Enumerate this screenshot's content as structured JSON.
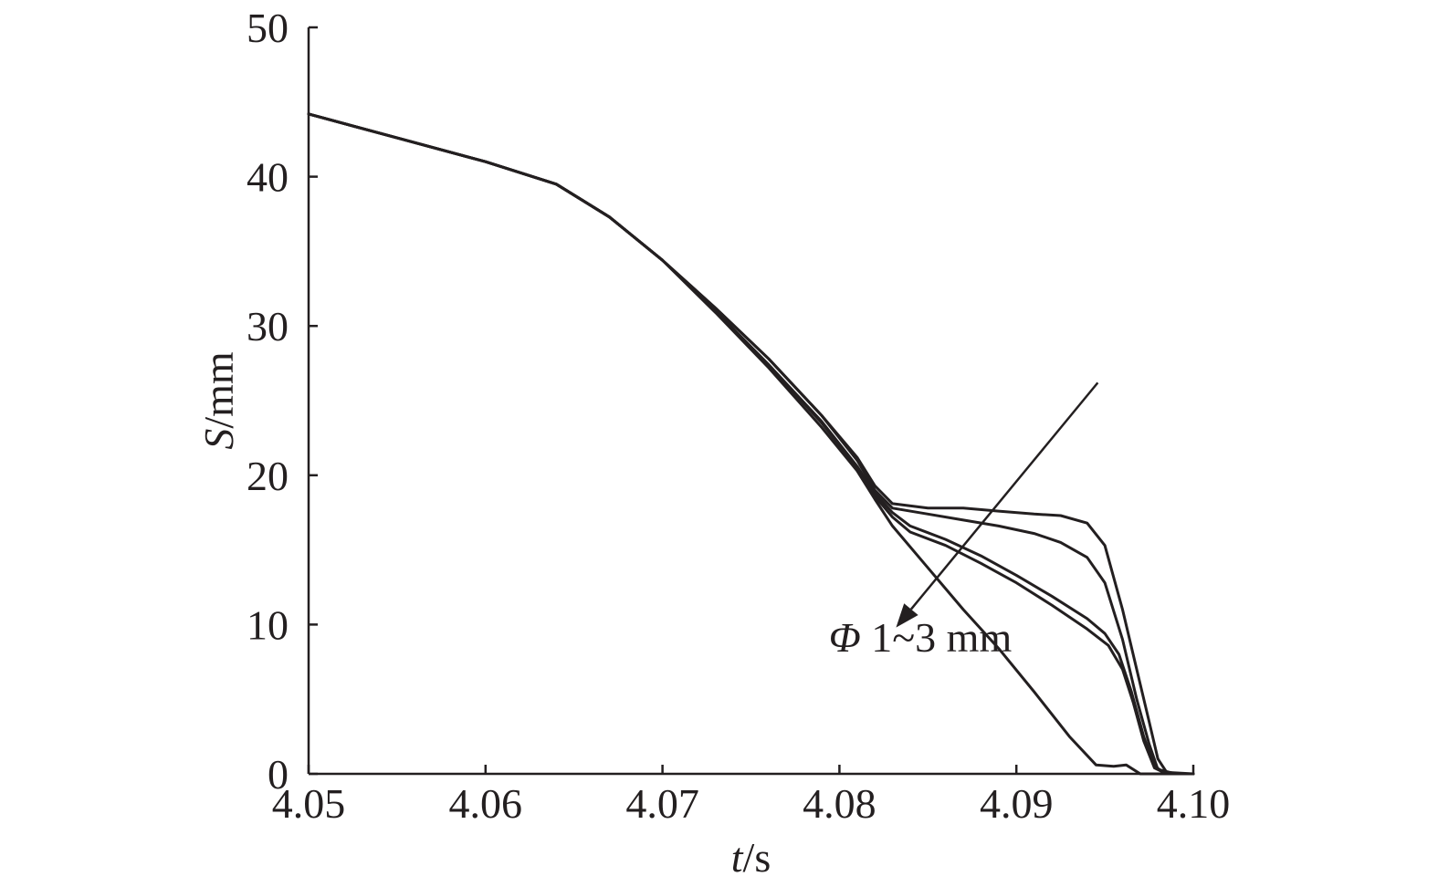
{
  "chart_data": {
    "type": "line",
    "xlabel": {
      "italic": "t",
      "unit": "/s"
    },
    "ylabel": {
      "italic": "S",
      "unit": "/mm"
    },
    "xlim": [
      4.05,
      4.1
    ],
    "ylim": [
      0,
      50
    ],
    "xticks": [
      4.05,
      4.06,
      4.07,
      4.08,
      4.09,
      4.1
    ],
    "xtick_labels": [
      "4.05",
      "4.06",
      "4.07",
      "4.08",
      "4.09",
      "4.10"
    ],
    "yticks": [
      0,
      10,
      20,
      30,
      40,
      50
    ],
    "ytick_labels": [
      "0",
      "10",
      "20",
      "30",
      "40",
      "50"
    ],
    "grid": false,
    "annotation": {
      "italic": "Φ",
      "text": " 1~3 mm",
      "arrow_from": [
        4.0946,
        26.2
      ],
      "arrow_to": [
        4.0832,
        9.8
      ],
      "label_at": [
        4.0794,
        8.2
      ]
    },
    "series": [
      {
        "points": [
          [
            4.05,
            44.2
          ],
          [
            4.055,
            42.6
          ],
          [
            4.06,
            41.0
          ],
          [
            4.064,
            39.5
          ],
          [
            4.067,
            37.3
          ],
          [
            4.07,
            34.4
          ],
          [
            4.073,
            31.2
          ],
          [
            4.076,
            27.8
          ],
          [
            4.079,
            24.0
          ],
          [
            4.081,
            21.2
          ],
          [
            4.082,
            19.3
          ],
          [
            4.083,
            18.1
          ],
          [
            4.085,
            17.8
          ],
          [
            4.087,
            17.8
          ],
          [
            4.089,
            17.6
          ],
          [
            4.091,
            17.4
          ],
          [
            4.0925,
            17.3
          ],
          [
            4.094,
            16.8
          ],
          [
            4.095,
            15.3
          ],
          [
            4.096,
            11.0
          ],
          [
            4.0968,
            7.0
          ],
          [
            4.0975,
            3.5
          ],
          [
            4.098,
            1.0
          ],
          [
            4.0985,
            0.1
          ],
          [
            4.1,
            0.0
          ]
        ]
      },
      {
        "points": [
          [
            4.05,
            44.2
          ],
          [
            4.055,
            42.6
          ],
          [
            4.06,
            41.0
          ],
          [
            4.064,
            39.5
          ],
          [
            4.067,
            37.3
          ],
          [
            4.07,
            34.4
          ],
          [
            4.073,
            31.2
          ],
          [
            4.076,
            27.8
          ],
          [
            4.079,
            24.0
          ],
          [
            4.081,
            21.0
          ],
          [
            4.082,
            19.0
          ],
          [
            4.083,
            17.8
          ],
          [
            4.085,
            17.4
          ],
          [
            4.087,
            17.0
          ],
          [
            4.089,
            16.6
          ],
          [
            4.091,
            16.1
          ],
          [
            4.0925,
            15.5
          ],
          [
            4.094,
            14.5
          ],
          [
            4.095,
            12.8
          ],
          [
            4.096,
            9.0
          ],
          [
            4.0968,
            5.0
          ],
          [
            4.0975,
            2.0
          ],
          [
            4.098,
            0.3
          ],
          [
            4.099,
            0.0
          ],
          [
            4.1,
            0.0
          ]
        ]
      },
      {
        "points": [
          [
            4.05,
            44.2
          ],
          [
            4.055,
            42.6
          ],
          [
            4.06,
            41.0
          ],
          [
            4.064,
            39.5
          ],
          [
            4.067,
            37.3
          ],
          [
            4.07,
            34.4
          ],
          [
            4.073,
            31.0
          ],
          [
            4.076,
            27.4
          ],
          [
            4.079,
            23.6
          ],
          [
            4.081,
            20.6
          ],
          [
            4.082,
            18.8
          ],
          [
            4.083,
            17.5
          ],
          [
            4.084,
            16.6
          ],
          [
            4.086,
            15.7
          ],
          [
            4.088,
            14.6
          ],
          [
            4.09,
            13.3
          ],
          [
            4.092,
            11.9
          ],
          [
            4.094,
            10.4
          ],
          [
            4.095,
            9.4
          ],
          [
            4.0958,
            8.0
          ],
          [
            4.0965,
            5.5
          ],
          [
            4.0972,
            2.5
          ],
          [
            4.0978,
            0.5
          ],
          [
            4.0985,
            0.0
          ],
          [
            4.1,
            0.0
          ]
        ]
      },
      {
        "points": [
          [
            4.05,
            44.2
          ],
          [
            4.055,
            42.6
          ],
          [
            4.06,
            41.0
          ],
          [
            4.064,
            39.5
          ],
          [
            4.067,
            37.3
          ],
          [
            4.07,
            34.4
          ],
          [
            4.073,
            31.0
          ],
          [
            4.076,
            27.4
          ],
          [
            4.079,
            23.5
          ],
          [
            4.081,
            20.5
          ],
          [
            4.082,
            18.6
          ],
          [
            4.083,
            17.2
          ],
          [
            4.084,
            16.2
          ],
          [
            4.086,
            15.3
          ],
          [
            4.088,
            14.1
          ],
          [
            4.09,
            12.8
          ],
          [
            4.092,
            11.3
          ],
          [
            4.094,
            9.7
          ],
          [
            4.0952,
            8.6
          ],
          [
            4.096,
            7.0
          ],
          [
            4.0966,
            4.8
          ],
          [
            4.0972,
            2.2
          ],
          [
            4.0978,
            0.4
          ],
          [
            4.0985,
            0.0
          ],
          [
            4.1,
            0.0
          ]
        ]
      },
      {
        "points": [
          [
            4.05,
            44.2
          ],
          [
            4.055,
            42.6
          ],
          [
            4.06,
            41.0
          ],
          [
            4.064,
            39.5
          ],
          [
            4.067,
            37.3
          ],
          [
            4.07,
            34.4
          ],
          [
            4.073,
            30.9
          ],
          [
            4.076,
            27.2
          ],
          [
            4.079,
            23.2
          ],
          [
            4.081,
            20.3
          ],
          [
            4.082,
            18.4
          ],
          [
            4.083,
            16.6
          ],
          [
            4.085,
            13.8
          ],
          [
            4.087,
            11.0
          ],
          [
            4.089,
            8.4
          ],
          [
            4.091,
            5.5
          ],
          [
            4.093,
            2.5
          ],
          [
            4.0945,
            0.6
          ],
          [
            4.0955,
            0.5
          ],
          [
            4.0962,
            0.6
          ],
          [
            4.097,
            0.0
          ],
          [
            4.1,
            0.0
          ]
        ]
      }
    ]
  }
}
